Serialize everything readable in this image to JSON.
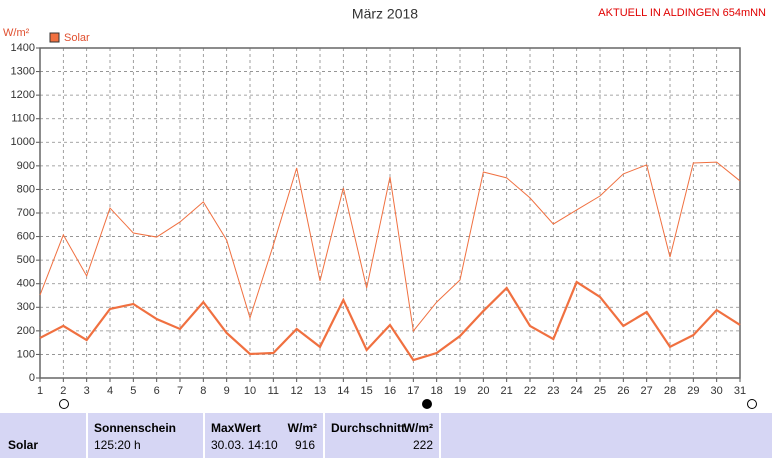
{
  "chart_data": {
    "type": "line",
    "title": "März 2018",
    "station": "AKTUELL IN ALDINGEN 654mNN",
    "y_label": "W/m²",
    "x": [
      1,
      2,
      3,
      4,
      5,
      6,
      7,
      8,
      9,
      10,
      11,
      12,
      13,
      14,
      15,
      16,
      17,
      18,
      19,
      20,
      21,
      22,
      23,
      24,
      25,
      26,
      27,
      28,
      29,
      30,
      31
    ],
    "xlim": [
      1,
      31
    ],
    "xticks": [
      1,
      2,
      3,
      4,
      5,
      6,
      7,
      8,
      9,
      10,
      11,
      12,
      13,
      14,
      15,
      16,
      17,
      18,
      19,
      20,
      21,
      22,
      23,
      24,
      25,
      26,
      27,
      28,
      29,
      30,
      31
    ],
    "ylim": [
      0,
      1400
    ],
    "yticks": [
      0,
      100,
      200,
      300,
      400,
      500,
      600,
      700,
      800,
      900,
      1000,
      1100,
      1200,
      1300,
      1400
    ],
    "grid": true,
    "series": [
      {
        "name": "Solar",
        "color": "#f07040",
        "values": [
          170,
          221,
          161,
          293,
          314,
          250,
          208,
          322,
          191,
          102,
          106,
          208,
          132,
          331,
          119,
          225,
          76,
          106,
          178,
          284,
          382,
          221,
          165,
          407,
          344,
          221,
          280,
          132,
          182,
          288,
          225
        ]
      },
      {
        "color": "#f07040",
        "values": [
          352,
          607,
          433,
          721,
          615,
          598,
          662,
          747,
          585,
          255,
          564,
          891,
          412,
          806,
          382,
          853,
          199,
          322,
          416,
          874,
          849,
          764,
          653,
          713,
          772,
          866,
          904,
          513,
          912,
          916,
          836
        ]
      }
    ]
  },
  "stats": {
    "label": "Solar",
    "sunshine": {
      "title": "Sonnenschein",
      "value": "125:20 h"
    },
    "max": {
      "title": "MaxWert",
      "unit": "W/m²",
      "time": "30.03.  14:10",
      "value": "916"
    },
    "avg": {
      "title": "Durchschnitt",
      "unit": "W/m²",
      "value": "222"
    }
  }
}
